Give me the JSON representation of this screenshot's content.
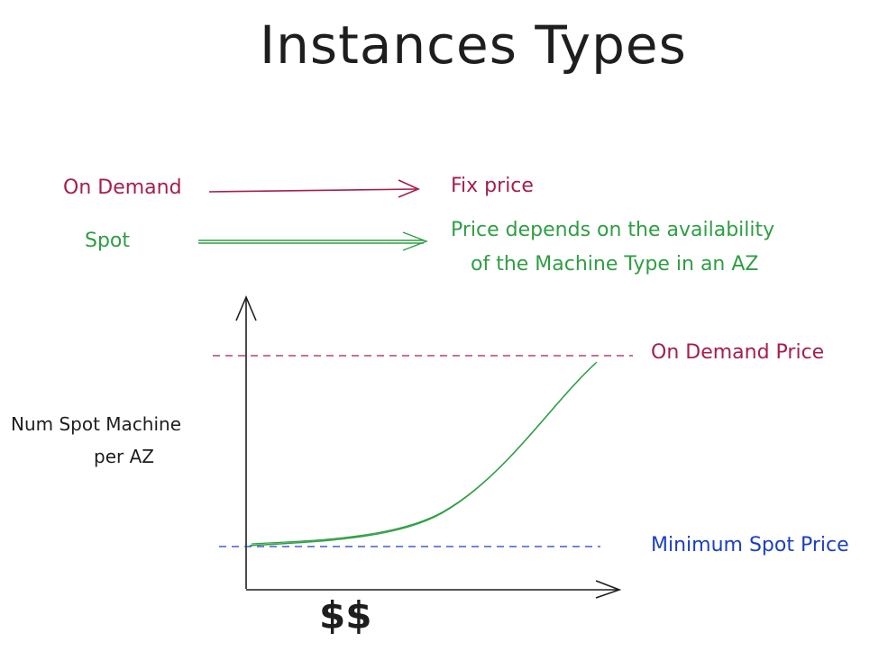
{
  "title": "Instances Types",
  "rows": {
    "on_demand": {
      "label": "On Demand",
      "description": "Fix price"
    },
    "spot": {
      "label": "Spot",
      "description_line1": "Price depends on the availability",
      "description_line2": "of the Machine Type in an AZ"
    }
  },
  "chart": {
    "ylabel_line1": "Num Spot Machine",
    "ylabel_line2": "per AZ",
    "xlabel": "$$",
    "on_demand_price_label": "On Demand Price",
    "minimum_spot_price_label": "Minimum Spot Price"
  },
  "colors": {
    "on_demand": "#a61e4d",
    "spot": "#2f9e44",
    "minimum": "#1c3fc2",
    "ink": "#1e1e1e"
  }
}
